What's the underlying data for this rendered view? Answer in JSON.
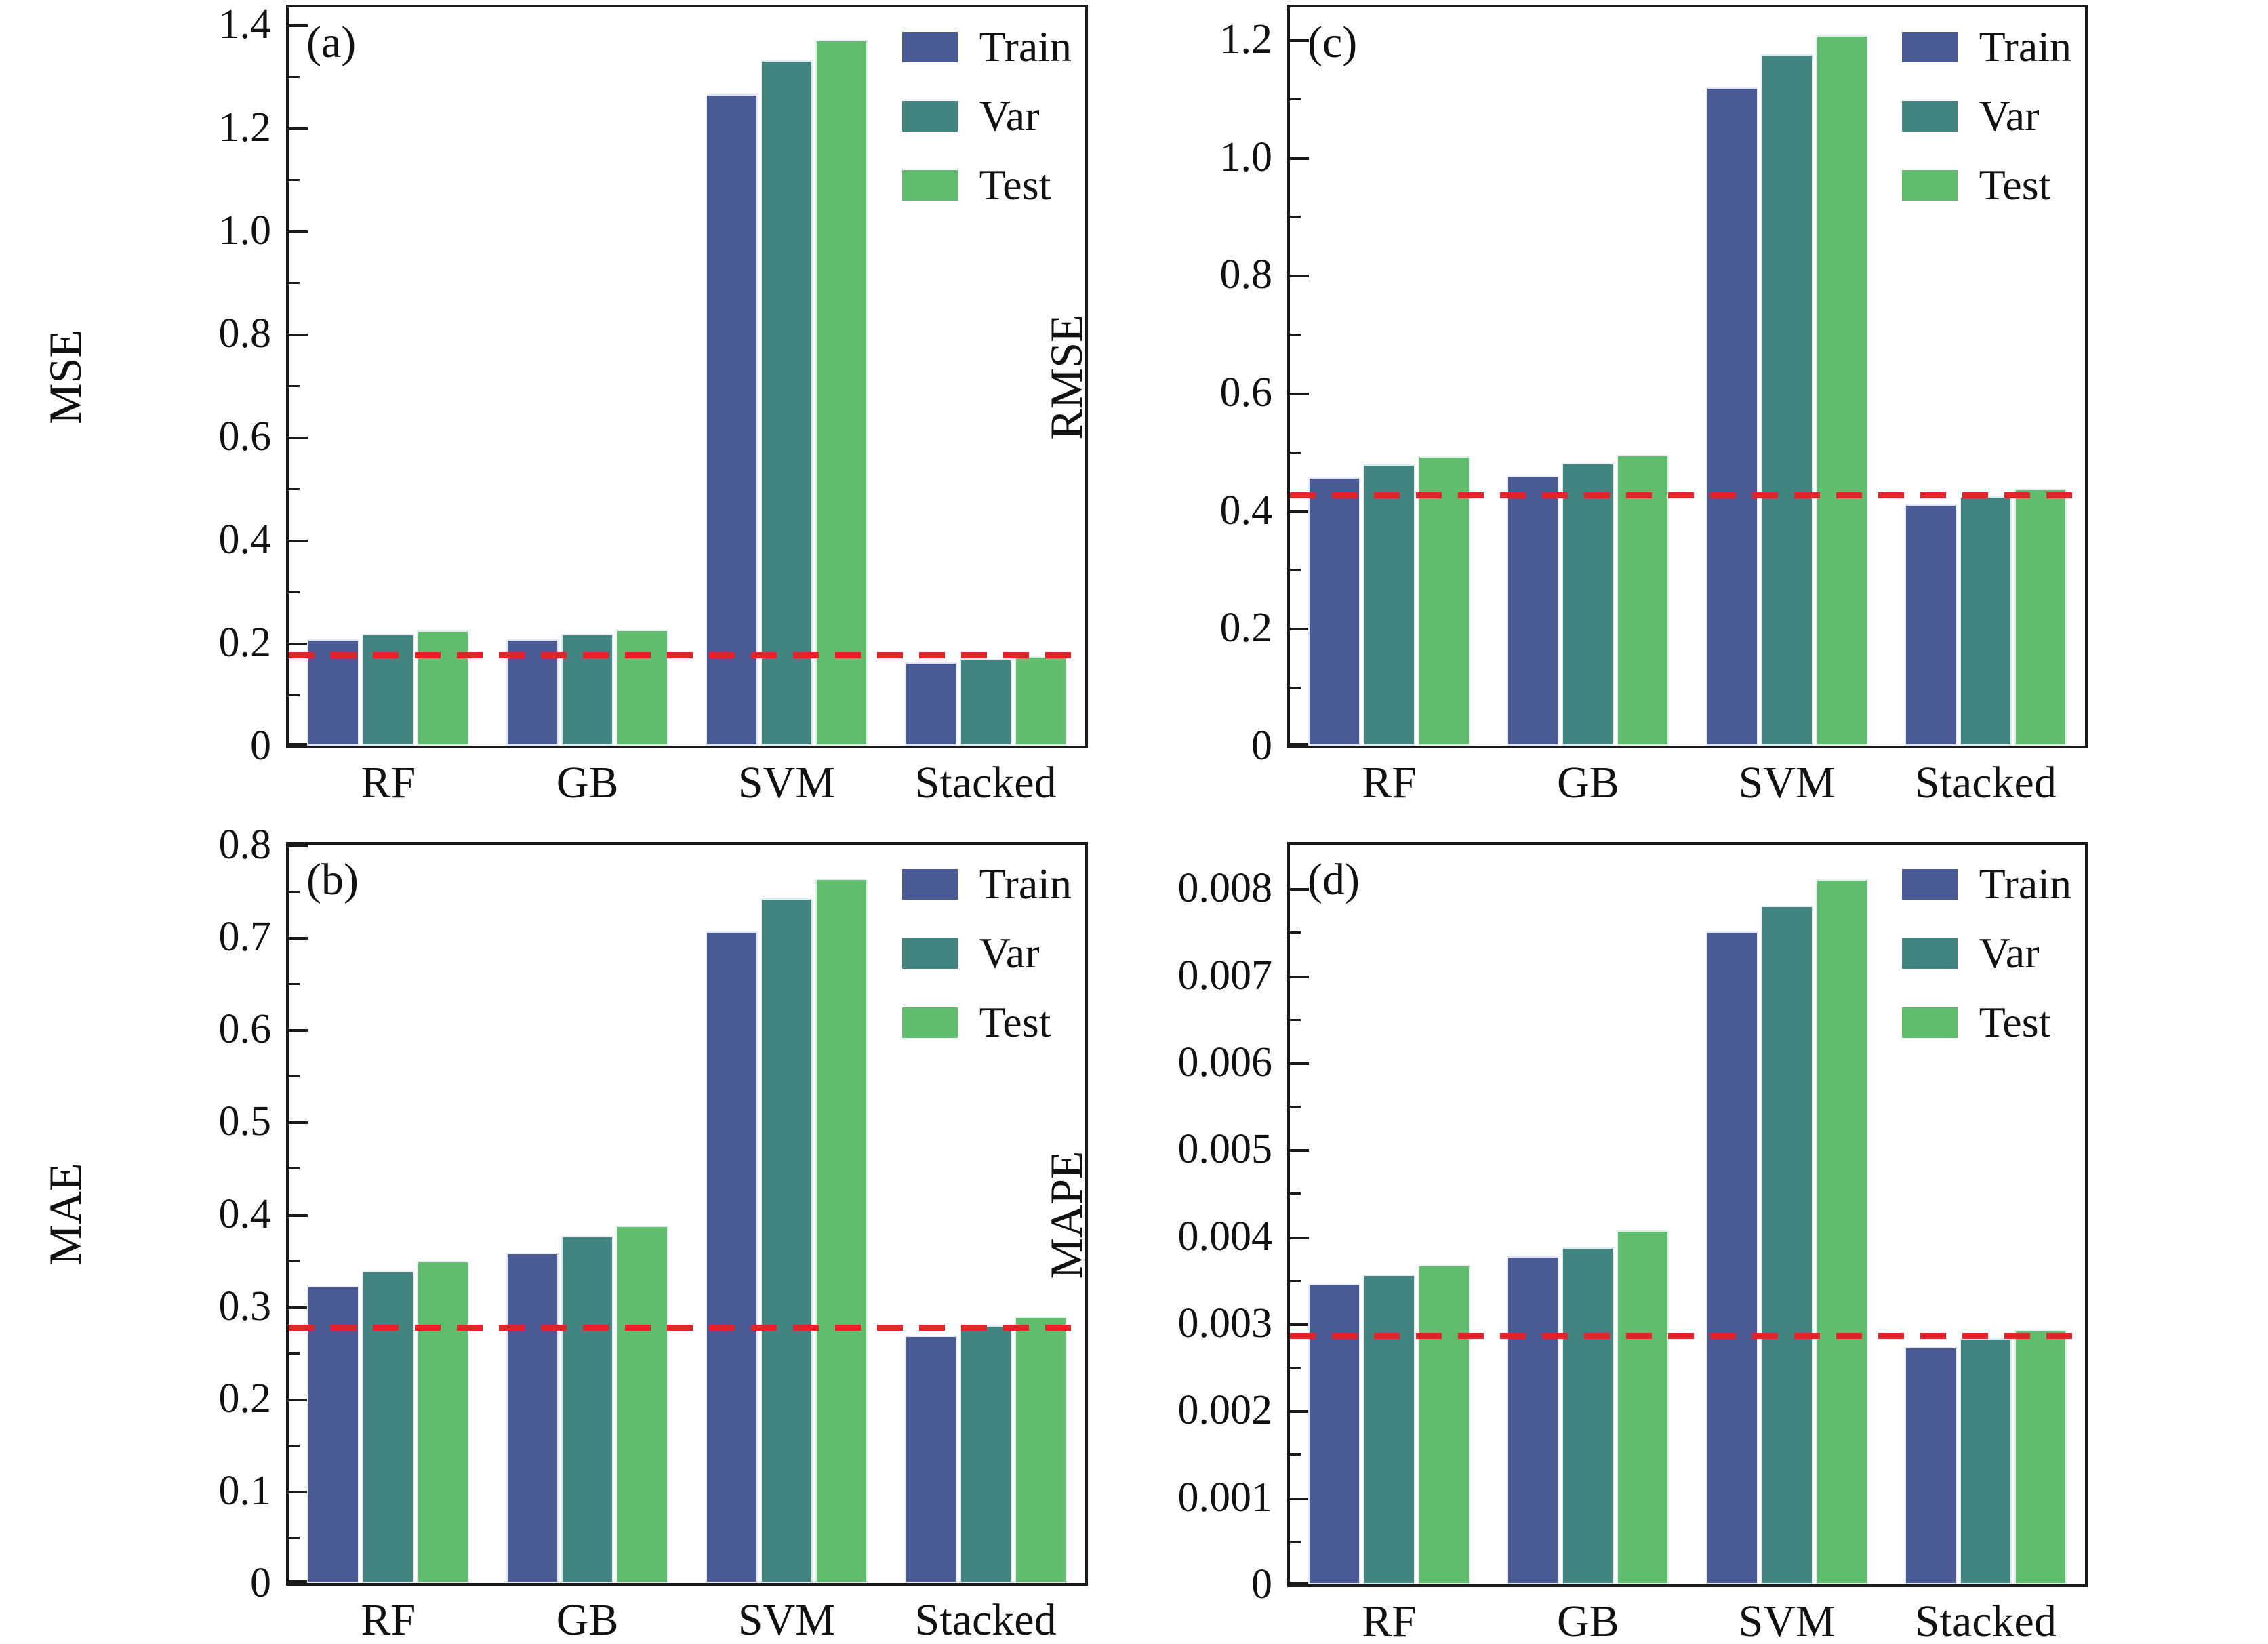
{
  "figure_name": "model-error-metrics-comparison",
  "colors": {
    "train": "#4a5a94",
    "var": "#418480",
    "test": "#5fbd6d",
    "baseline": "#e32328",
    "axis": "#1a1a1a",
    "background": "#ffffff"
  },
  "legend": {
    "labels": [
      "Train",
      "Var",
      "Test"
    ]
  },
  "categories": [
    "RF",
    "GB",
    "SVM",
    "Stacked"
  ],
  "chart_data": [
    {
      "id": "a",
      "tag": "(a)",
      "type": "bar",
      "ylabel": "MSE",
      "xlabel": "",
      "legend_position": "upper-right",
      "grid": false,
      "categories": [
        "RF",
        "GB",
        "SVM",
        "Stacked"
      ],
      "series": [
        {
          "name": "Train",
          "values": [
            0.206,
            0.206,
            1.265,
            0.162
          ]
        },
        {
          "name": "Var",
          "values": [
            0.217,
            0.217,
            1.33,
            0.169
          ]
        },
        {
          "name": "Test",
          "values": [
            0.224,
            0.225,
            1.37,
            0.174
          ]
        }
      ],
      "baseline": 0.176,
      "ylim": [
        0,
        1.433
      ],
      "yticks": [
        {
          "value": 0,
          "label": "0"
        },
        {
          "value": 0.2,
          "label": "0.2"
        },
        {
          "value": 0.4,
          "label": "0.4"
        },
        {
          "value": 0.6,
          "label": "0.6"
        },
        {
          "value": 0.8,
          "label": "0.8"
        },
        {
          "value": 1.0,
          "label": "1.0"
        },
        {
          "value": 1.2,
          "label": "1.2"
        },
        {
          "value": 1.4,
          "label": "1.4"
        }
      ],
      "minor_ticks": [
        0.1,
        0.3,
        0.5,
        0.7,
        0.9,
        1.1,
        1.3
      ]
    },
    {
      "id": "b",
      "tag": "(b)",
      "type": "bar",
      "ylabel": "MAE",
      "xlabel": "",
      "legend_position": "upper-right",
      "grid": false,
      "categories": [
        "RF",
        "GB",
        "SVM",
        "Stacked"
      ],
      "series": [
        {
          "name": "Train",
          "values": [
            0.322,
            0.358,
            0.706,
            0.268
          ]
        },
        {
          "name": "Var",
          "values": [
            0.338,
            0.376,
            0.742,
            0.279
          ]
        },
        {
          "name": "Test",
          "values": [
            0.349,
            0.387,
            0.763,
            0.289
          ]
        }
      ],
      "baseline": 0.277,
      "ylim": [
        0,
        0.8
      ],
      "yticks": [
        {
          "value": 0,
          "label": "0"
        },
        {
          "value": 0.1,
          "label": "0.1"
        },
        {
          "value": 0.2,
          "label": "0.2"
        },
        {
          "value": 0.3,
          "label": "0.3"
        },
        {
          "value": 0.4,
          "label": "0.4"
        },
        {
          "value": 0.5,
          "label": "0.5"
        },
        {
          "value": 0.6,
          "label": "0.6"
        },
        {
          "value": 0.7,
          "label": "0.7"
        },
        {
          "value": 0.8,
          "label": "0.8"
        }
      ],
      "minor_ticks": [
        0.05,
        0.15,
        0.25,
        0.35,
        0.45,
        0.55,
        0.65,
        0.75
      ]
    },
    {
      "id": "c",
      "tag": "(c)",
      "type": "bar",
      "ylabel": "RMSE",
      "xlabel": "",
      "legend_position": "upper-right",
      "grid": false,
      "categories": [
        "RF",
        "GB",
        "SVM",
        "Stacked"
      ],
      "series": [
        {
          "name": "Train",
          "values": [
            0.456,
            0.458,
            1.118,
            0.41
          ]
        },
        {
          "name": "Var",
          "values": [
            0.478,
            0.48,
            1.174,
            0.424
          ]
        },
        {
          "name": "Test",
          "values": [
            0.492,
            0.494,
            1.207,
            0.437
          ]
        }
      ],
      "baseline": 0.426,
      "ylim": [
        0,
        1.254
      ],
      "yticks": [
        {
          "value": 0,
          "label": "0"
        },
        {
          "value": 0.2,
          "label": "0.2"
        },
        {
          "value": 0.4,
          "label": "0.4"
        },
        {
          "value": 0.6,
          "label": "0.6"
        },
        {
          "value": 0.8,
          "label": "0.8"
        },
        {
          "value": 1.0,
          "label": "1.0"
        },
        {
          "value": 1.2,
          "label": "1.2"
        }
      ],
      "minor_ticks": [
        0.1,
        0.3,
        0.5,
        0.7,
        0.9,
        1.1
      ]
    },
    {
      "id": "d",
      "tag": "(d)",
      "type": "bar",
      "ylabel": "MAPE",
      "xlabel": "",
      "legend_position": "upper-right",
      "grid": false,
      "categories": [
        "RF",
        "GB",
        "SVM",
        "Stacked"
      ],
      "series": [
        {
          "name": "Train",
          "values": [
            0.00345,
            0.00377,
            0.0075,
            0.00273
          ]
        },
        {
          "name": "Var",
          "values": [
            0.00356,
            0.00387,
            0.0078,
            0.00283
          ]
        },
        {
          "name": "Test",
          "values": [
            0.00367,
            0.00407,
            0.0081,
            0.00292
          ]
        }
      ],
      "baseline": 0.00286,
      "ylim": [
        0,
        0.0085
      ],
      "yticks": [
        {
          "value": 0,
          "label": "0"
        },
        {
          "value": 0.001,
          "label": "0.001"
        },
        {
          "value": 0.002,
          "label": "0.002"
        },
        {
          "value": 0.003,
          "label": "0.003"
        },
        {
          "value": 0.004,
          "label": "0.004"
        },
        {
          "value": 0.005,
          "label": "0.005"
        },
        {
          "value": 0.006,
          "label": "0.006"
        },
        {
          "value": 0.007,
          "label": "0.007"
        },
        {
          "value": 0.008,
          "label": "0.008"
        }
      ],
      "minor_ticks": [
        0.0005,
        0.0015,
        0.0025,
        0.0035,
        0.0045,
        0.0055,
        0.0065,
        0.0075
      ]
    }
  ]
}
